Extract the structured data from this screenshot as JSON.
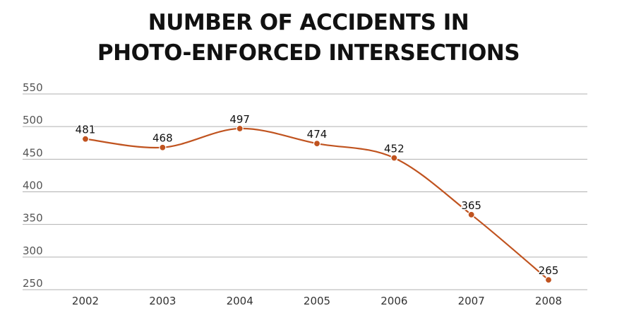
{
  "chart_data": {
    "type": "line",
    "title_lines": [
      "NUMBER OF ACCIDENTS IN",
      "PHOTO-ENFORCED INTERSECTIONS"
    ],
    "title": "NUMBER OF ACCIDENTS IN PHOTO-ENFORCED INTERSECTIONS",
    "xlabel": "",
    "ylabel": "",
    "x": [
      "2002",
      "2003",
      "2004",
      "2005",
      "2006",
      "2007",
      "2008"
    ],
    "series": [
      {
        "values": [
          481,
          468,
          497,
          474,
          452,
          365,
          265
        ]
      }
    ],
    "ylim": [
      250,
      550
    ],
    "y_ticks": [
      250,
      300,
      350,
      400,
      450,
      500,
      550
    ],
    "grid": true,
    "legend": "none",
    "data_labels": true,
    "smooth": true
  },
  "colors": {
    "line": "#c0531f",
    "marker": "#c0531f",
    "grid": "#b0b0b0",
    "tick_text": "#555555",
    "label_text": "#111111",
    "title_text": "#111111"
  }
}
